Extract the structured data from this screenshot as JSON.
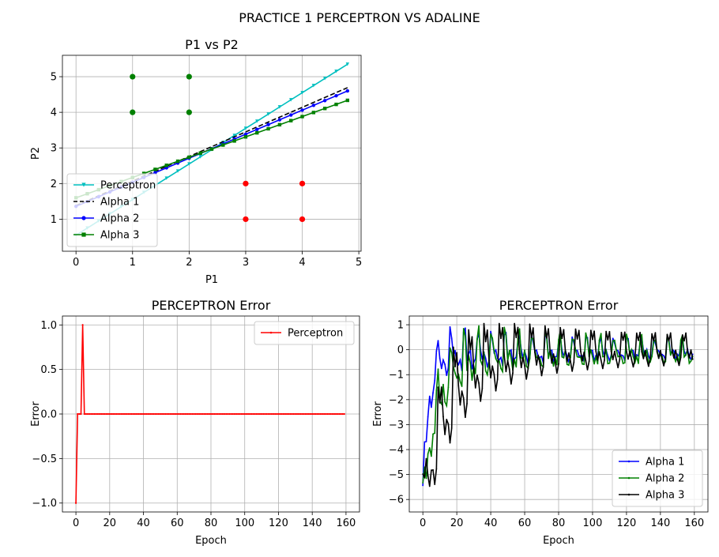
{
  "figure": {
    "suptitle": "PRACTICE 1 PERCEPTRON VS ADALINE"
  },
  "chart_data": [
    {
      "type": "scatter",
      "title": "P1 vs P2",
      "xlabel": "P1",
      "ylabel": "P2",
      "xlim": [
        -0.24,
        5.04
      ],
      "ylim": [
        0.1,
        5.6
      ],
      "xticks": [
        0,
        1,
        2,
        3,
        4,
        5
      ],
      "yticks": [
        1,
        2,
        3,
        4,
        5
      ],
      "grid": true,
      "legend": "lower-left",
      "scatter_series": [
        {
          "color": "#008000",
          "x": [
            1,
            2,
            1,
            2
          ],
          "y": [
            5,
            5,
            4,
            4
          ]
        },
        {
          "color": "#ff0000",
          "x": [
            3,
            4,
            3,
            4
          ],
          "y": [
            2,
            2,
            1,
            1
          ]
        }
      ],
      "lines": [
        {
          "name": "Perceptron",
          "color": "#00bfbf",
          "marker": "triangle",
          "x0": 0,
          "x1": 4.8,
          "step": 0.2,
          "slope": 1.0,
          "intercept": 0.55
        },
        {
          "name": "Alpha 1",
          "color": "#000000",
          "marker": "none",
          "dashed": true,
          "x0": 0,
          "x1": 4.8,
          "step": 0.2,
          "slope": 0.69,
          "intercept": 1.38
        },
        {
          "name": "Alpha 2",
          "color": "#0000ff",
          "marker": "circle",
          "x0": 0,
          "x1": 4.8,
          "step": 0.2,
          "slope": 0.675,
          "intercept": 1.36
        },
        {
          "name": "Alpha 3",
          "color": "#008000",
          "marker": "square",
          "x0": 0,
          "x1": 4.8,
          "step": 0.2,
          "slope": 0.57,
          "intercept": 1.6
        }
      ]
    },
    {
      "type": "line",
      "title": "PERCEPTRON Error",
      "xlabel": "Epoch",
      "ylabel": "Error",
      "xlim": [
        -8,
        168
      ],
      "ylim": [
        -1.1,
        1.1
      ],
      "xticks": [
        0,
        20,
        40,
        60,
        80,
        100,
        120,
        140,
        160
      ],
      "yticks": [
        -1.0,
        -0.5,
        0.0,
        0.5,
        1.0
      ],
      "grid": true,
      "legend": "top-right",
      "series": [
        {
          "name": "Perceptron",
          "color": "#ff0000",
          "length": 160,
          "values_head": [
            -1,
            0,
            0,
            0,
            1
          ],
          "rest": 0
        }
      ]
    },
    {
      "type": "line",
      "title": "PERCEPTRON Error",
      "xlabel": "Epoch",
      "ylabel": "Error",
      "xlim": [
        -8,
        168
      ],
      "ylim": [
        -6.5,
        1.35
      ],
      "xticks": [
        0,
        20,
        40,
        60,
        80,
        100,
        120,
        140,
        160
      ],
      "yticks": [
        -6,
        -5,
        -4,
        -3,
        -2,
        -1,
        0,
        1
      ],
      "grid": true,
      "legend": "bottom-right",
      "series": [
        {
          "name": "Alpha 1",
          "color": "#0000ff",
          "length": 160,
          "y_start": -5.8,
          "decay": 3.5,
          "osc_amp": 1.0,
          "final_amp": 0.35,
          "period": 8,
          "center": 0.05
        },
        {
          "name": "Alpha 2",
          "color": "#008000",
          "length": 160,
          "y_start": -6.0,
          "decay": 8,
          "osc_amp": 1.4,
          "final_amp": 0.45,
          "period": 8,
          "center": 0.0
        },
        {
          "name": "Alpha 3",
          "color": "#000000",
          "length": 160,
          "y_start": -6.2,
          "decay": 14,
          "osc_amp": 2.5,
          "final_amp": 0.5,
          "period": 9,
          "center": 0.05
        }
      ]
    }
  ]
}
